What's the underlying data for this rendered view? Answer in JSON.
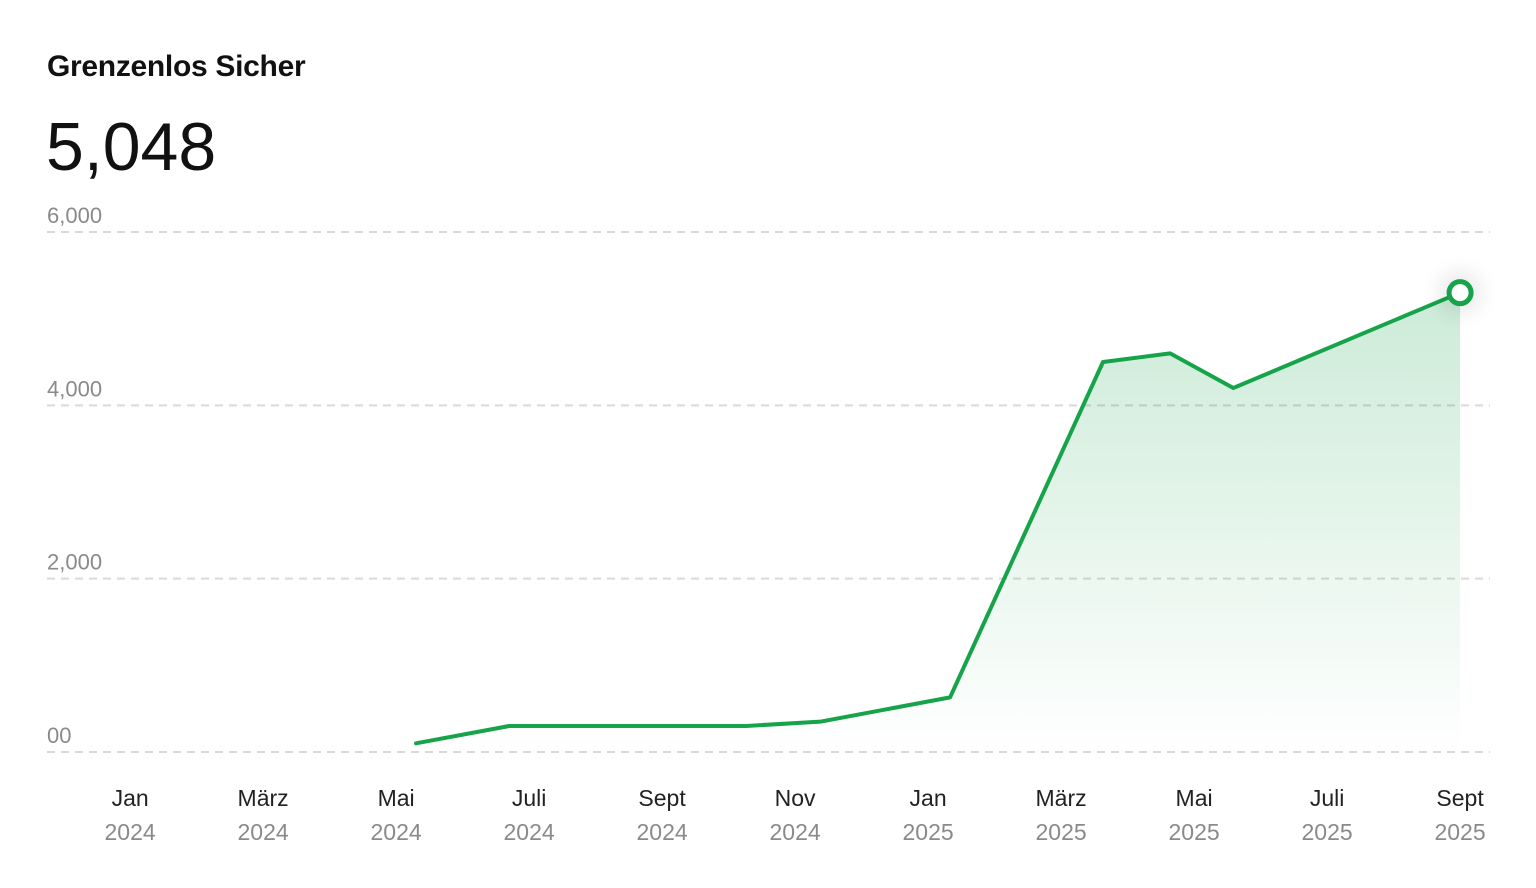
{
  "chart_data": {
    "type": "line",
    "title": "Grenzenlos Sicher",
    "headline": "5,048",
    "x": [
      4.3,
      5.7,
      9.26,
      10.38,
      12.33,
      14.63,
      15.64,
      16.59,
      20
    ],
    "series": [
      {
        "color": "#16a34a",
        "values": [
          100,
          300,
          300,
          350,
          630,
          4500,
          4600,
          4200,
          5300
        ]
      }
    ],
    "xlim": [
      -1.25,
      20.45
    ],
    "xticks": [
      {
        "value": 0,
        "label": "Jan\n2024"
      },
      {
        "value": 2,
        "label": "März\n2024"
      },
      {
        "value": 4,
        "label": "Mai\n2024"
      },
      {
        "value": 6,
        "label": "Juli\n2024"
      },
      {
        "value": 8,
        "label": "Sept\n2024"
      },
      {
        "value": 10,
        "label": "Nov\n2024"
      },
      {
        "value": 12,
        "label": "Jan\n2025"
      },
      {
        "value": 14,
        "label": "März\n2025"
      },
      {
        "value": 16,
        "label": "Mai\n2025"
      },
      {
        "value": 18,
        "label": "Juli\n2025"
      },
      {
        "value": 20,
        "label": "Sept\n2025"
      }
    ],
    "ylim": [
      0,
      6000
    ],
    "yticks": [
      {
        "value": 0,
        "label": "00"
      },
      {
        "value": 2000,
        "label": "2,000"
      },
      {
        "value": 4000,
        "label": "4,000"
      },
      {
        "value": 6000,
        "label": "6,000"
      }
    ],
    "grid": true
  }
}
